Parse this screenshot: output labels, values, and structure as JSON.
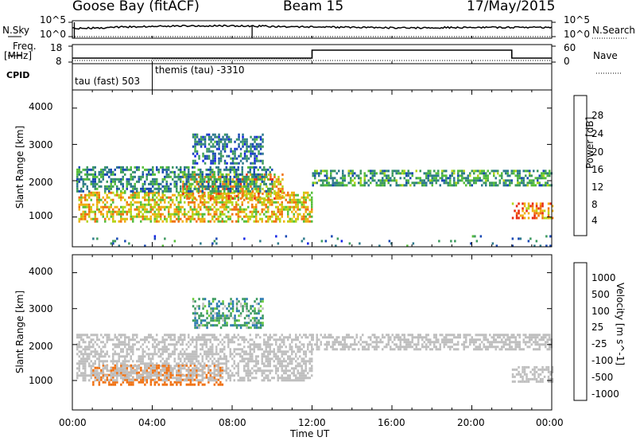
{
  "header": {
    "station": "Goose Bay (fitACF)",
    "beam": "Beam 15",
    "date": "17/May/2015"
  },
  "summary_panels": {
    "nsky_label": "N.Sky",
    "nsearch_label": "N.Search",
    "nsky_ticks": [
      "10^5",
      "10^0"
    ],
    "nsearch_ticks": [
      "10^5",
      "10^0"
    ],
    "freq_label": "Freq.",
    "freq_unit": "[MHz]",
    "freq_ticks": [
      "18",
      "8"
    ],
    "nave_label": "Nave",
    "nave_ticks": [
      "60",
      "0"
    ],
    "cpid_label": "CPID",
    "cpid_segments": [
      {
        "label": "tau (fast) 503",
        "start_hour": 0.0,
        "end_hour": 4.0
      },
      {
        "label": "themis (tau) -3310",
        "start_hour": 4.0,
        "end_hour": 24.0
      }
    ]
  },
  "chart_data": [
    {
      "type": "heatmap",
      "title": "",
      "xlabel": "Time UT",
      "ylabel": "Slant Range [km]",
      "xlim_hours": [
        0,
        24
      ],
      "x_tick_labels": [
        "00:00",
        "04:00",
        "08:00",
        "12:00",
        "16:00",
        "20:00",
        "00:00"
      ],
      "ylim": [
        180,
        4500
      ],
      "y_ticks": [
        1000,
        2000,
        3000,
        4000
      ],
      "colorbar": {
        "label": "Power [dB]",
        "ticks": [
          "28",
          "24",
          "20",
          "16",
          "12",
          "8",
          "4"
        ],
        "min": 0,
        "max": 30,
        "colors": [
          "#1424e6",
          "#1848b4",
          "#2e7a8c",
          "#3c9a5e",
          "#55be3a",
          "#b4d418",
          "#f0b010",
          "#f07010",
          "#e82a10"
        ]
      },
      "regions": [
        {
          "name": "main-echo-band",
          "t0": 0.3,
          "t1": 12.0,
          "r0": 900,
          "r1": 1700,
          "value": 20
        },
        {
          "name": "arc-2000",
          "t0": 5.5,
          "t1": 10.5,
          "r0": 1500,
          "r1": 2200,
          "value": 22
        },
        {
          "name": "upper-scatter",
          "t0": 0.2,
          "t1": 10.0,
          "r0": 1700,
          "r1": 2400,
          "value": 10
        },
        {
          "name": "arc-3000",
          "t0": 6.0,
          "t1": 9.5,
          "r0": 2500,
          "r1": 3300,
          "value": 8
        },
        {
          "name": "night-band-2100",
          "t0": 12.0,
          "t1": 24.0,
          "r0": 1850,
          "r1": 2300,
          "value": 12
        },
        {
          "name": "late-band-1150",
          "t0": 22.0,
          "t1": 24.0,
          "r0": 950,
          "r1": 1400,
          "value": 24
        },
        {
          "name": "ground-scatter-sparse",
          "t0": 1.0,
          "t1": 24.0,
          "r0": 200,
          "r1": 500,
          "value": 8
        }
      ]
    },
    {
      "type": "heatmap",
      "title": "",
      "xlabel": "Time UT",
      "ylabel": "Slant Range [km]",
      "xlim_hours": [
        0,
        24
      ],
      "x_tick_labels": [
        "00:00",
        "04:00",
        "08:00",
        "12:00",
        "16:00",
        "20:00",
        "00:00"
      ],
      "ylim": [
        180,
        4500
      ],
      "y_ticks": [
        1000,
        2000,
        3000,
        4000
      ],
      "colorbar": {
        "label": "Velocity [m s^-1]",
        "ticks": [
          "1000",
          "500",
          "100",
          "25",
          "-25",
          "-100",
          "-500",
          "-1000"
        ],
        "colors": [
          "#1e2ed8",
          "#2a7ab0",
          "#3c9a5e",
          "#6ccc3a",
          "#bfbfbf",
          "#f0a020",
          "#f07010",
          "#e82a10"
        ]
      },
      "regions": [
        {
          "name": "neg-vel-band",
          "t0": 1.0,
          "t1": 7.5,
          "r0": 900,
          "r1": 1450,
          "value": -200
        },
        {
          "name": "ground-scatter-main",
          "t0": 0.2,
          "t1": 12.0,
          "r0": 1000,
          "r1": 2300,
          "value": 0
        },
        {
          "name": "arc-3000-pos",
          "t0": 6.0,
          "t1": 9.5,
          "r0": 2500,
          "r1": 3300,
          "value": 60
        },
        {
          "name": "night-grey-band",
          "t0": 12.0,
          "t1": 24.0,
          "r0": 1850,
          "r1": 2300,
          "value": 0
        },
        {
          "name": "late-grey-band",
          "t0": 22.0,
          "t1": 24.0,
          "r0": 1000,
          "r1": 1400,
          "value": 0
        }
      ]
    }
  ]
}
